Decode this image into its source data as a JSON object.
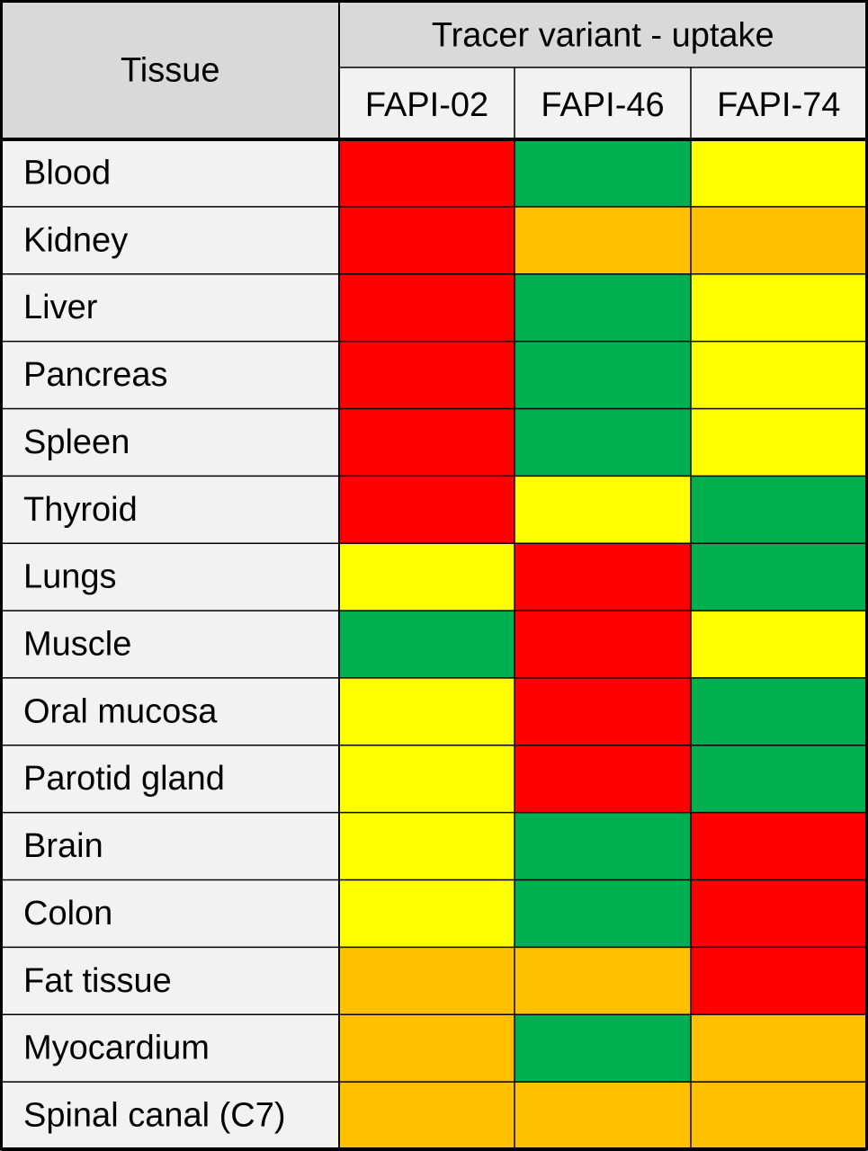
{
  "chart_data": {
    "type": "heatmap",
    "title": "",
    "row_header": "Tissue",
    "column_group_header": "Tracer variant - uptake",
    "columns": [
      "FAPI-02",
      "FAPI-46",
      "FAPI-74"
    ],
    "rows": [
      "Blood",
      "Kidney",
      "Liver",
      "Pancreas",
      "Spleen",
      "Thyroid",
      "Lungs",
      "Muscle",
      "Oral mucosa",
      "Parotid gland",
      "Brain",
      "Colon",
      "Fat tissue",
      "Myocardium",
      "Spinal canal (C7)"
    ],
    "values": [
      [
        "red",
        "green",
        "yellow"
      ],
      [
        "red",
        "orange",
        "orange"
      ],
      [
        "red",
        "green",
        "yellow"
      ],
      [
        "red",
        "green",
        "yellow"
      ],
      [
        "red",
        "green",
        "yellow"
      ],
      [
        "red",
        "yellow",
        "green"
      ],
      [
        "yellow",
        "red",
        "green"
      ],
      [
        "green",
        "red",
        "yellow"
      ],
      [
        "yellow",
        "red",
        "green"
      ],
      [
        "yellow",
        "red",
        "green"
      ],
      [
        "yellow",
        "green",
        "red"
      ],
      [
        "yellow",
        "green",
        "red"
      ],
      [
        "orange",
        "orange",
        "red"
      ],
      [
        "orange",
        "green",
        "orange"
      ],
      [
        "orange",
        "orange",
        "orange"
      ]
    ],
    "colors": {
      "red": "#ff0000",
      "green": "#00b050",
      "yellow": "#ffff00",
      "orange": "#ffc000",
      "header_fill": "#d9d9d9",
      "row_label_fill": "#f2f2f2",
      "grid_line": "#000000"
    }
  }
}
